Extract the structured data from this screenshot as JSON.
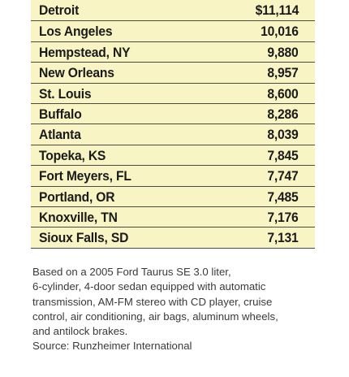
{
  "table": {
    "rows": [
      [
        "Detroit",
        "$11,114"
      ],
      [
        "Los Angeles",
        "10,016"
      ],
      [
        "Hempstead, NY",
        "9,880"
      ],
      [
        "New Orleans",
        "8,957"
      ],
      [
        "St. Louis",
        "8,600"
      ],
      [
        "Buffalo",
        "8,286"
      ],
      [
        "Atlanta",
        "8,039"
      ],
      [
        "Topeka, KS",
        "7,845"
      ],
      [
        "Fort Meyers, FL",
        "7,747"
      ],
      [
        "Portland, OR",
        "7,485"
      ],
      [
        "Knoxville, TN",
        "7,176"
      ],
      [
        "Sioux Falls, SD",
        "7,131"
      ]
    ]
  },
  "note": {
    "lines": [
      "Based on a 2005 Ford Taurus SE 3.0 liter,",
      "6-cylinder, 4-door sedan equipped with automatic",
      "transmission, AM-FM stereo with CD player, cruise",
      "control, air conditioning, air bags, aluminum wheels,",
      "and antilock brakes."
    ],
    "source": "Source: Runzheimer International"
  }
}
